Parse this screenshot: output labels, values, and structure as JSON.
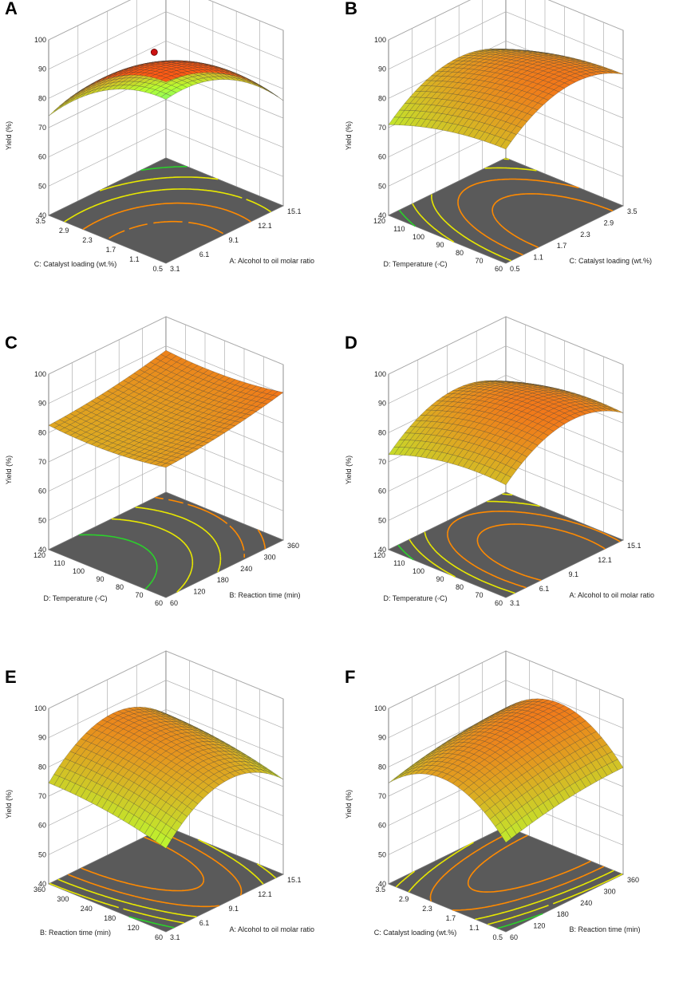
{
  "chart_data": [
    {
      "panel": "A",
      "type": "surface",
      "zlabel": "Yield (%)",
      "zlim": [
        40,
        100
      ],
      "zticks": [
        "100",
        "90",
        "80",
        "70",
        "60",
        "50",
        "40"
      ],
      "x_axis": {
        "label": "A: Alcohol to oil molar ratio",
        "ticks": [
          "3.1",
          "6.1",
          "9.1",
          "12.1",
          "15.1"
        ]
      },
      "y_axis": {
        "label": "C: Catalyst loading (wt.%)",
        "ticks": [
          "0.5",
          "1.1",
          "1.7",
          "2.3",
          "2.9",
          "3.5"
        ]
      },
      "surface_model": {
        "base": 91,
        "a": [
          0,
          -20,
          -12
        ],
        "b": [
          0,
          -22,
          -14
        ],
        "ab": 3
      },
      "optimum_marker": {
        "x": 9.1,
        "y": 2.0,
        "z": 92
      },
      "surface_colors": {
        "low": "#12e8e0",
        "mid": "#b8ff30",
        "high": "#ff5a14"
      }
    },
    {
      "panel": "B",
      "type": "surface",
      "zlabel": "Yield (%)",
      "zlim": [
        40,
        100
      ],
      "zticks": [
        "100",
        "90",
        "80",
        "70",
        "60",
        "50",
        "40"
      ],
      "x_axis": {
        "label": "C: Catalyst loading (wt.%)",
        "ticks": [
          "0.5",
          "1.1",
          "1.7",
          "2.3",
          "2.9",
          "3.5"
        ]
      },
      "y_axis": {
        "label": "D: Temperature (◦C)",
        "ticks": [
          "60",
          "70",
          "80",
          "90",
          "100",
          "110",
          "120"
        ]
      },
      "surface_model": {
        "base": 88,
        "a": [
          0,
          6,
          -16
        ],
        "b": [
          0,
          -8,
          -4
        ],
        "ab": 0
      },
      "surface_colors": {
        "low": "#12e8e0",
        "mid": "#b8ff30",
        "high": "#ff5a14"
      }
    },
    {
      "panel": "C",
      "type": "surface",
      "zlabel": "Yield (%)",
      "zlim": [
        40,
        100
      ],
      "zticks": [
        "100",
        "90",
        "80",
        "70",
        "60",
        "50",
        "40"
      ],
      "x_axis": {
        "label": "B: Reaction time (min)",
        "ticks": [
          "60",
          "120",
          "180",
          "240",
          "300",
          "360"
        ]
      },
      "y_axis": {
        "label": "D: Temperature (◦C)",
        "ticks": [
          "60",
          "70",
          "80",
          "90",
          "100",
          "110",
          "120"
        ]
      },
      "surface_model": {
        "base": 84,
        "a": [
          0,
          6,
          2
        ],
        "b": [
          0,
          -2,
          3
        ],
        "ab": 0
      },
      "surface_colors": {
        "low": "#12e8e0",
        "mid": "#b8ff30",
        "high": "#ff5a14"
      }
    },
    {
      "panel": "D",
      "type": "surface",
      "zlabel": "Yield (%)",
      "zlim": [
        40,
        100
      ],
      "zticks": [
        "100",
        "90",
        "80",
        "70",
        "60",
        "50",
        "40"
      ],
      "x_axis": {
        "label": "A: Alcohol to oil molar ratio",
        "ticks": [
          "3.1",
          "6.1",
          "9.1",
          "12.1",
          "15.1"
        ]
      },
      "y_axis": {
        "label": "D: Temperature (◦C)",
        "ticks": [
          "60",
          "70",
          "80",
          "90",
          "100",
          "110",
          "120"
        ]
      },
      "surface_model": {
        "base": 89,
        "a": [
          0,
          5,
          -17
        ],
        "b": [
          0,
          -6,
          -5
        ],
        "ab": 0
      },
      "surface_colors": {
        "low": "#12e8e0",
        "mid": "#b8ff30",
        "high": "#ff5a14"
      }
    },
    {
      "panel": "E",
      "type": "surface",
      "zlabel": "Yield (%)",
      "zlim": [
        40,
        100
      ],
      "zticks": [
        "100",
        "90",
        "80",
        "70",
        "60",
        "50",
        "40"
      ],
      "x_axis": {
        "label": "A: Alcohol to oil molar ratio",
        "ticks": [
          "3.1",
          "6.1",
          "9.1",
          "12.1",
          "15.1"
        ]
      },
      "y_axis": {
        "label": "B: Reaction time (min)",
        "ticks": [
          "60",
          "120",
          "180",
          "240",
          "300",
          "360"
        ]
      },
      "surface_model": {
        "base": 86,
        "a": [
          0,
          4,
          -22
        ],
        "b": [
          0,
          6,
          -3
        ],
        "ab": 0
      },
      "surface_colors": {
        "low": "#12e8e0",
        "mid": "#b8ff30",
        "high": "#ff5a14"
      }
    },
    {
      "panel": "F",
      "type": "surface",
      "zlabel": "Yield (%)",
      "zlim": [
        40,
        100
      ],
      "zticks": [
        "100",
        "90",
        "80",
        "70",
        "60",
        "50",
        "40"
      ],
      "x_axis": {
        "label": "B: Reaction time (min)",
        "ticks": [
          "60",
          "120",
          "180",
          "240",
          "300",
          "360"
        ]
      },
      "y_axis": {
        "label": "C: Catalyst loading (wt.%)",
        "ticks": [
          "0.5",
          "1.1",
          "1.7",
          "2.3",
          "2.9",
          "3.5"
        ]
      },
      "surface_model": {
        "base": 88,
        "a": [
          0,
          6,
          -3
        ],
        "b": [
          0,
          4,
          -22
        ],
        "ab": 0
      },
      "surface_colors": {
        "low": "#12e8e0",
        "mid": "#b8ff30",
        "high": "#ff5a14"
      }
    }
  ],
  "colors": {
    "floor": "#5a5a5a",
    "axis": "#777777",
    "grid": "#b0b0b0",
    "marker": "#cc1111",
    "contour_hi": "#ff8a00",
    "contour_mid": "#e8e800",
    "contour_lo": "#2bd12b"
  }
}
